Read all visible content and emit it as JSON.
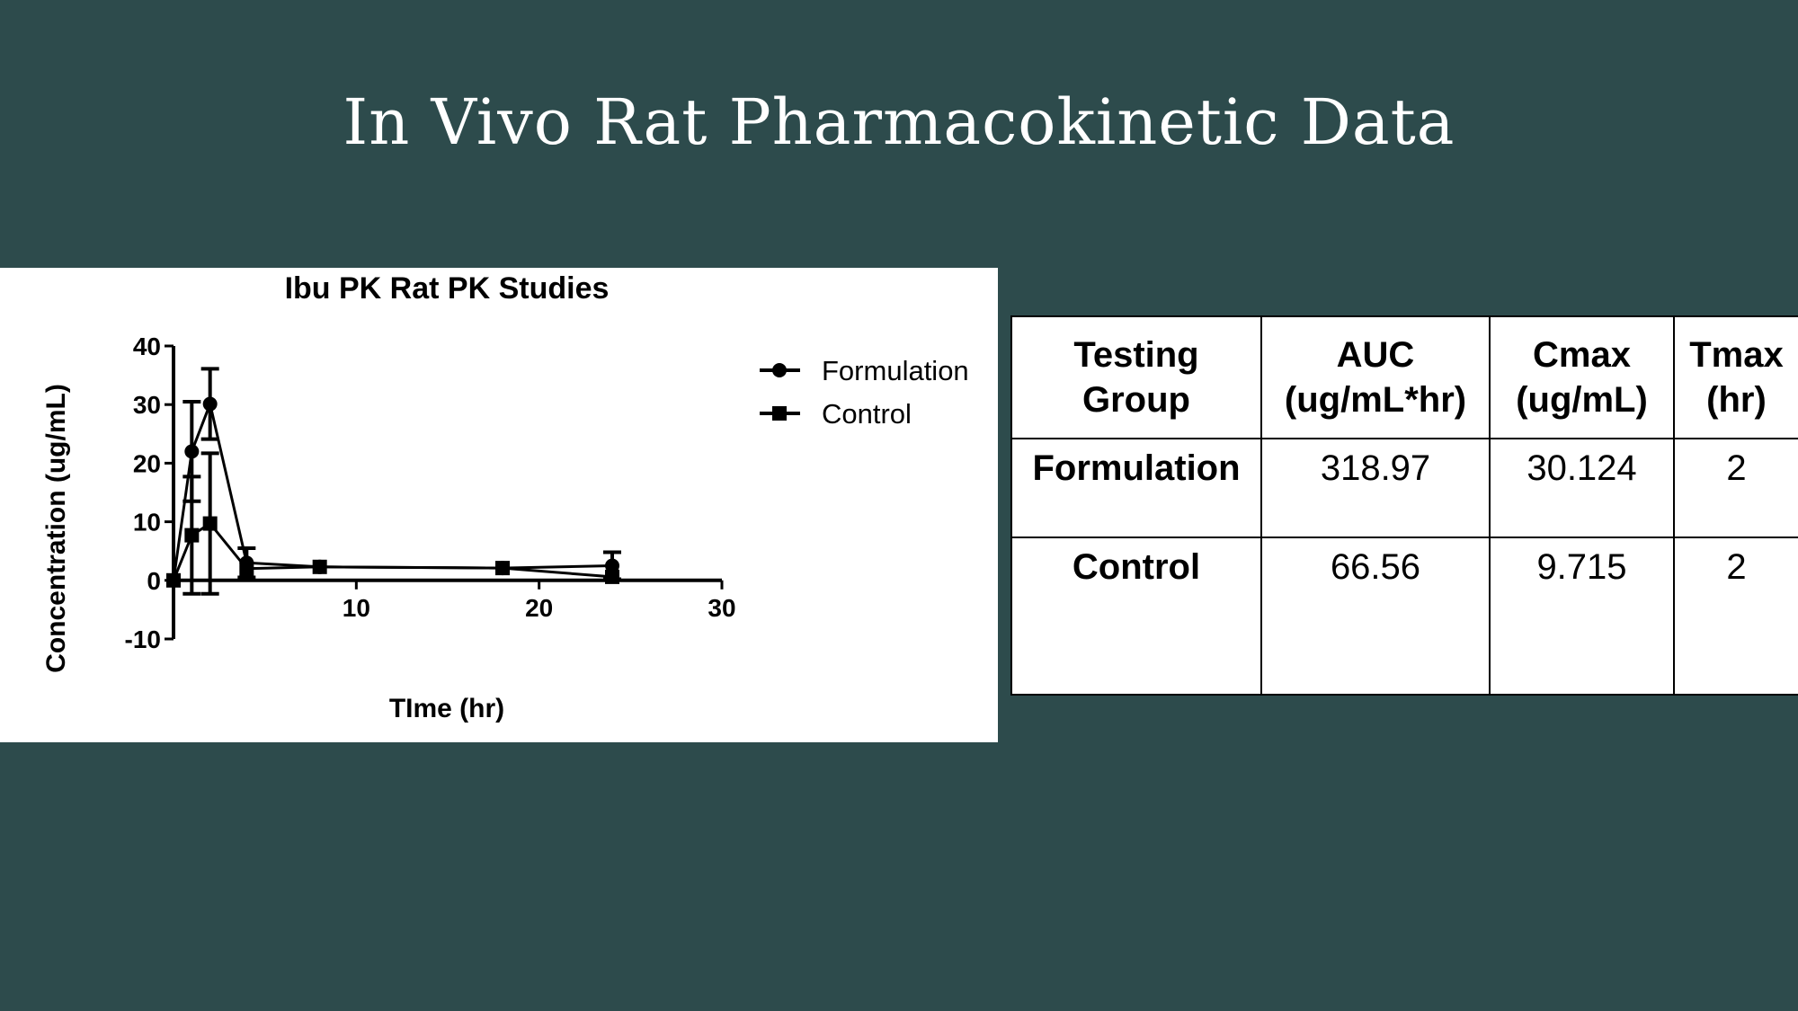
{
  "slide": {
    "title": "In Vivo Rat Pharmacokinetic Data"
  },
  "chart_data": {
    "type": "line",
    "title": "Ibu PK  Rat PK  Studies",
    "xlabel": "TIme (hr)",
    "ylabel": "Concentration (ug/mL)",
    "xlim": [
      0,
      30
    ],
    "ylim": [
      -10,
      40
    ],
    "xticks": [
      10,
      20,
      30
    ],
    "yticks": [
      -10,
      0,
      10,
      20,
      30,
      40
    ],
    "legend_position": "top-right",
    "series": [
      {
        "name": "Formulation",
        "marker": "circle",
        "x": [
          0,
          1,
          2,
          4,
          8,
          18,
          24
        ],
        "y": [
          0,
          22,
          30.1,
          3,
          2.3,
          2.1,
          2.5
        ],
        "err": [
          0,
          8.5,
          6,
          2.5,
          0,
          0,
          2.3
        ]
      },
      {
        "name": "Control",
        "marker": "square",
        "x": [
          0,
          1,
          2,
          4,
          8,
          18,
          24
        ],
        "y": [
          0,
          7.7,
          9.7,
          2,
          2.3,
          2.1,
          0.6
        ],
        "err": [
          0,
          10,
          12,
          0,
          0,
          0,
          0
        ]
      }
    ]
  },
  "table": {
    "headers": [
      "Testing Group",
      "AUC (ug/mL*hr)",
      "Cmax (ug/mL)",
      "Tmax (hr)"
    ],
    "header_lines": [
      [
        "Testing",
        "Group"
      ],
      [
        "AUC",
        "(ug/mL*hr)"
      ],
      [
        "Cmax",
        "(ug/mL)"
      ],
      [
        "Tmax",
        "(hr)"
      ]
    ],
    "rows": [
      [
        "Formulation",
        "318.97",
        "30.124",
        "2"
      ],
      [
        "Control",
        "66.56",
        "9.715",
        "2"
      ]
    ]
  }
}
